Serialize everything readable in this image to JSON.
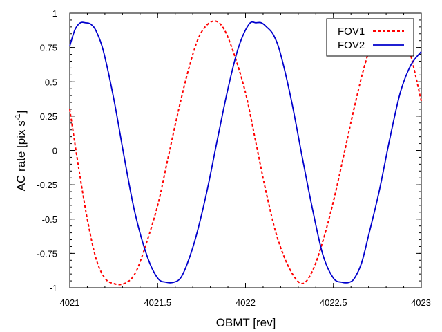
{
  "chart_data": {
    "type": "line",
    "title": "",
    "xlabel": "OBMT [rev]",
    "ylabel_main": "AC rate [pix s",
    "ylabel_sup": "-1",
    "ylabel_close": "]",
    "xlim": [
      4021,
      4023
    ],
    "ylim": [
      -1,
      1
    ],
    "x_ticks": [
      4021,
      4021.5,
      4022,
      4022.5,
      4023
    ],
    "x_tick_labels": [
      "4021",
      "4021.5",
      "4022",
      "4022.5",
      "4023"
    ],
    "y_ticks": [
      -1,
      -0.75,
      -0.5,
      -0.25,
      0,
      0.25,
      0.5,
      0.75,
      1
    ],
    "y_tick_labels": [
      "-1",
      "-0.75",
      "-0.5",
      "-0.25",
      "0",
      "0.25",
      "0.5",
      "0.75",
      "1"
    ],
    "grid": false,
    "legend_position": "top-right",
    "series": [
      {
        "name": "FOV1",
        "color": "#ff0000",
        "style": "dashed",
        "x": [
          4021.0,
          4021.05,
          4021.1,
          4021.15,
          4021.2,
          4021.25,
          4021.31,
          4021.37,
          4021.43,
          4021.5,
          4021.56,
          4021.62,
          4021.68,
          4021.74,
          4021.81,
          4021.87,
          4021.93,
          4022.0,
          4022.06,
          4022.12,
          4022.18,
          4022.25,
          4022.32,
          4022.38,
          4022.44,
          4022.5,
          4022.56,
          4022.62,
          4022.68,
          4022.74,
          4022.81,
          4022.87,
          4022.93,
          4023.0
        ],
        "y": [
          0.3,
          -0.12,
          -0.5,
          -0.79,
          -0.93,
          -0.97,
          -0.97,
          -0.9,
          -0.7,
          -0.4,
          -0.05,
          0.3,
          0.61,
          0.84,
          0.94,
          0.9,
          0.72,
          0.42,
          0.05,
          -0.32,
          -0.63,
          -0.86,
          -0.97,
          -0.88,
          -0.66,
          -0.37,
          -0.03,
          0.32,
          0.63,
          0.85,
          0.95,
          0.92,
          0.74,
          0.36
        ]
      },
      {
        "name": "FOV2",
        "color": "#0000cc",
        "style": "solid",
        "x": [
          4021.0,
          4021.03,
          4021.06,
          4021.09,
          4021.12,
          4021.15,
          4021.19,
          4021.25,
          4021.31,
          4021.37,
          4021.44,
          4021.5,
          4021.55,
          4021.59,
          4021.63,
          4021.67,
          4021.72,
          4021.78,
          4021.84,
          4021.9,
          4021.96,
          4022.02,
          4022.06,
          4022.09,
          4022.12,
          4022.16,
          4022.2,
          4022.26,
          4022.32,
          4022.38,
          4022.44,
          4022.5,
          4022.55,
          4022.59,
          4022.62,
          4022.66,
          4022.7,
          4022.76,
          4022.82,
          4022.88,
          4022.94,
          4023.0
        ],
        "y": [
          0.76,
          0.88,
          0.93,
          0.93,
          0.92,
          0.87,
          0.73,
          0.38,
          -0.05,
          -0.45,
          -0.77,
          -0.93,
          -0.96,
          -0.96,
          -0.93,
          -0.82,
          -0.62,
          -0.3,
          0.08,
          0.45,
          0.75,
          0.92,
          0.93,
          0.93,
          0.9,
          0.84,
          0.7,
          0.37,
          -0.03,
          -0.42,
          -0.76,
          -0.93,
          -0.96,
          -0.96,
          -0.93,
          -0.82,
          -0.62,
          -0.3,
          0.08,
          0.42,
          0.62,
          0.72
        ]
      }
    ]
  }
}
